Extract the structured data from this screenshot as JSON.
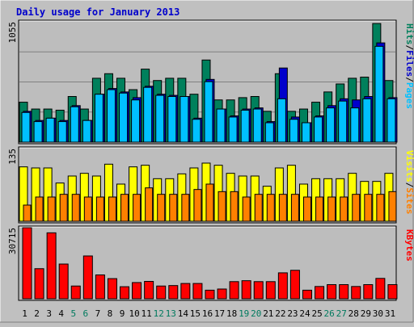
{
  "title": "Daily usage for January 2013",
  "colors": {
    "background": "#c0c0c0",
    "plot_bg": "#bdbdbd",
    "title": "#0000cc",
    "hits": "#00805c",
    "files": "#0000cc",
    "pages": "#00c0ff",
    "visits": "#ffff00",
    "sites": "#ff8000",
    "kbytes": "#ff0000",
    "weekend_day": "#007a5e",
    "weekday": "#000000"
  },
  "chart_data": [
    {
      "type": "bar",
      "name": "hits-files-pages",
      "categories": [
        "1",
        "2",
        "3",
        "4",
        "5",
        "6",
        "7",
        "8",
        "9",
        "10",
        "11",
        "12",
        "13",
        "14",
        "15",
        "16",
        "17",
        "18",
        "19",
        "20",
        "21",
        "22",
        "23",
        "24",
        "25",
        "26",
        "27",
        "28",
        "29",
        "30",
        "31"
      ],
      "ymax_label": "1055",
      "ymax": 1055,
      "right_labels": [
        "Pages",
        "Files",
        "Hits"
      ],
      "series": [
        {
          "name": "Hits",
          "values": [
            350,
            290,
            290,
            280,
            400,
            290,
            560,
            600,
            560,
            460,
            640,
            540,
            560,
            560,
            420,
            720,
            370,
            370,
            390,
            400,
            270,
            600,
            270,
            290,
            350,
            440,
            510,
            560,
            570,
            1040,
            540
          ]
        },
        {
          "name": "Files",
          "values": [
            270,
            190,
            210,
            190,
            320,
            190,
            420,
            470,
            440,
            390,
            490,
            420,
            410,
            400,
            210,
            550,
            290,
            230,
            290,
            300,
            180,
            650,
            220,
            170,
            230,
            320,
            380,
            370,
            400,
            870,
            390
          ]
        },
        {
          "name": "Pages",
          "values": [
            260,
            180,
            210,
            180,
            310,
            190,
            420,
            460,
            430,
            370,
            480,
            410,
            400,
            400,
            200,
            530,
            290,
            220,
            280,
            290,
            170,
            380,
            200,
            170,
            220,
            300,
            360,
            300,
            380,
            840,
            380
          ]
        }
      ]
    },
    {
      "type": "bar",
      "name": "visits-sites",
      "categories": [
        "1",
        "2",
        "3",
        "4",
        "5",
        "6",
        "7",
        "8",
        "9",
        "10",
        "11",
        "12",
        "13",
        "14",
        "15",
        "16",
        "17",
        "18",
        "19",
        "20",
        "21",
        "22",
        "23",
        "24",
        "25",
        "26",
        "27",
        "28",
        "29",
        "30",
        "31"
      ],
      "ymax_label": "135",
      "ymax": 135,
      "right_labels": [
        "Sites",
        "Visits"
      ],
      "series": [
        {
          "name": "Visits",
          "values": [
            101,
            99,
            99,
            71,
            84,
            89,
            84,
            106,
            69,
            101,
            104,
            79,
            79,
            88,
            99,
            108,
            104,
            89,
            84,
            84,
            65,
            99,
            104,
            69,
            79,
            79,
            79,
            89,
            74,
            74,
            89
          ]
        },
        {
          "name": "Sites",
          "values": [
            30,
            45,
            45,
            50,
            50,
            45,
            45,
            45,
            50,
            50,
            62,
            50,
            50,
            50,
            59,
            69,
            55,
            55,
            45,
            50,
            50,
            50,
            50,
            45,
            45,
            45,
            45,
            50,
            50,
            50,
            55
          ]
        }
      ]
    },
    {
      "type": "bar",
      "name": "kbytes",
      "categories": [
        "1",
        "2",
        "3",
        "4",
        "5",
        "6",
        "7",
        "8",
        "9",
        "10",
        "11",
        "12",
        "13",
        "14",
        "15",
        "16",
        "17",
        "18",
        "19",
        "20",
        "21",
        "22",
        "23",
        "24",
        "25",
        "26",
        "27",
        "28",
        "29",
        "30",
        "31"
      ],
      "ymax_label": "30715",
      "ymax": 30715,
      "right_labels": [
        "KBytes"
      ],
      "series": [
        {
          "name": "KBytes",
          "values": [
            30715,
            13000,
            28500,
            15000,
            5500,
            18500,
            10300,
            8700,
            5200,
            7000,
            7500,
            5500,
            5700,
            6600,
            6600,
            3700,
            4200,
            7400,
            7800,
            7400,
            7400,
            11200,
            12300,
            3700,
            5300,
            6100,
            6100,
            5300,
            6100,
            8800,
            6100
          ]
        }
      ]
    }
  ],
  "day_colors": [
    "weekday",
    "weekday",
    "weekday",
    "weekday",
    "weekend",
    "weekend",
    "weekday",
    "weekday",
    "weekday",
    "weekday",
    "weekday",
    "weekend",
    "weekend",
    "weekday",
    "weekday",
    "weekday",
    "weekday",
    "weekday",
    "weekend",
    "weekend",
    "weekday",
    "weekday",
    "weekday",
    "weekday",
    "weekday",
    "weekend",
    "weekend",
    "weekday",
    "weekday",
    "weekday",
    "weekday"
  ]
}
